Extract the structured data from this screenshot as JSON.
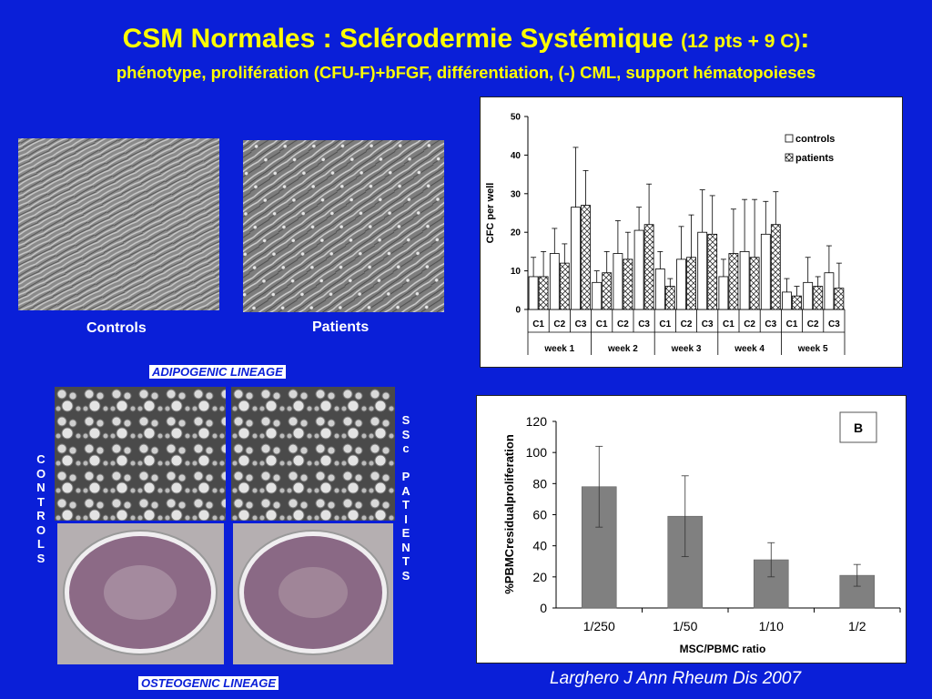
{
  "slide": {
    "title_main": "CSM Normales : Sclérodermie Systémique",
    "title_paren": "(12 pts + 9 C)",
    "title_colon": ":",
    "subtitle": "phénotype, prolifération (CFU-F)+bFGF, différentiation, (-) CML, support hématopoieses",
    "controls_caption": "Controls",
    "patients_caption": "Patients",
    "adipogenic_label": "ADIPOGENIC LINEAGE",
    "osteogenic_label": "OSTEOGENIC LINEAGE",
    "vertical_controls": "C\nO\nN\nT\nR\nO\nL\nS",
    "vertical_patients": "S\nS\nc\n\nP\nA\nT\nI\nE\nN\nT\nS",
    "citation": "Larghero J Ann Rheum Dis 2007"
  },
  "colors": {
    "background": "#0a1fd8",
    "title": "#ffff00",
    "bar_gray": "#808080"
  },
  "chart_data": [
    {
      "type": "bar",
      "ylabel": "CFC per well",
      "ylim": [
        0,
        50
      ],
      "yticks": [
        0,
        10,
        20,
        30,
        40,
        50
      ],
      "categories": [
        "C1",
        "C2",
        "C3",
        "C1",
        "C2",
        "C3",
        "C1",
        "C2",
        "C3",
        "C1",
        "C2",
        "C3",
        "C1",
        "C2",
        "C3"
      ],
      "groups": [
        "week 1",
        "week 2",
        "week 3",
        "week 4",
        "week 5"
      ],
      "legend": "top-right",
      "series": [
        {
          "name": "controls",
          "values": [
            8.5,
            14.5,
            26.5,
            7,
            14.5,
            20.5,
            10.5,
            13,
            20,
            8.5,
            15,
            19.5,
            4.5,
            7,
            9.5
          ],
          "errors": [
            5,
            6.5,
            15.5,
            3,
            8.5,
            6,
            4.5,
            8.5,
            11,
            4.5,
            13.5,
            8.5,
            3.5,
            6.5,
            7
          ]
        },
        {
          "name": "patients",
          "values": [
            8.5,
            12,
            27,
            9.5,
            13,
            22,
            6,
            13.5,
            19.5,
            14.5,
            13.5,
            22,
            3.5,
            6,
            5.5
          ],
          "errors": [
            6.5,
            5,
            9,
            5.5,
            7,
            10.5,
            2,
            11,
            10,
            11.5,
            15,
            8.5,
            2.5,
            2.5,
            6.5
          ]
        }
      ]
    },
    {
      "type": "bar",
      "badge": "B",
      "xlabel": "MSC/PBMC ratio",
      "ylabel": "%PBMCresidualproliferation",
      "ylim": [
        0,
        120
      ],
      "yticks": [
        0,
        20,
        40,
        60,
        80,
        100,
        120
      ],
      "categories": [
        "1/250",
        "1/50",
        "1/10",
        "1/2"
      ],
      "values": [
        78,
        59,
        31,
        21
      ],
      "errors": [
        26,
        26,
        11,
        7
      ]
    }
  ]
}
